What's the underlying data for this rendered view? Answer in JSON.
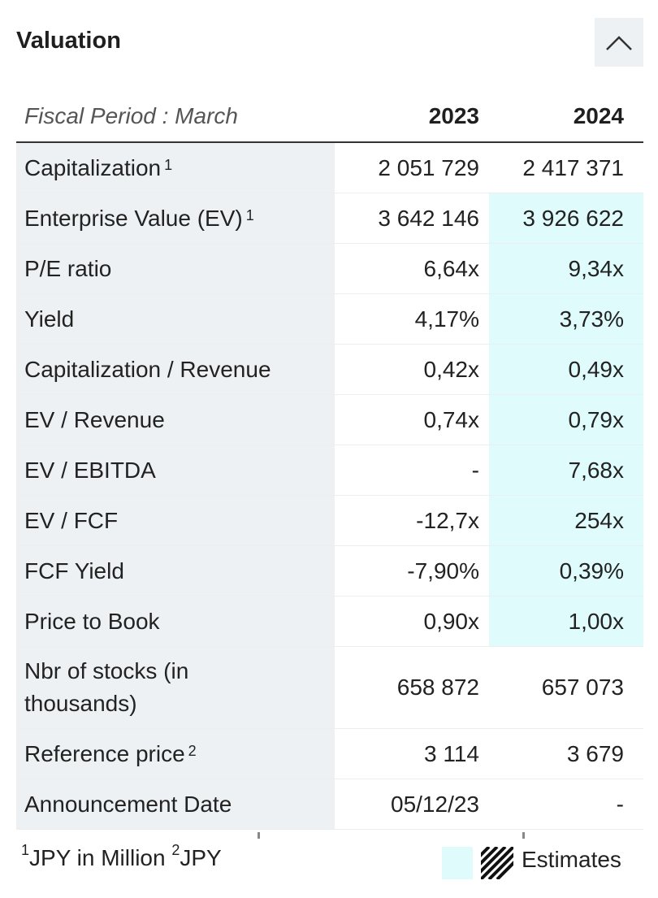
{
  "header": {
    "title": "Valuation",
    "collapse_icon": "chevron-up-icon"
  },
  "table": {
    "period_label": "Fiscal Period : March",
    "years": [
      "2023",
      "2024"
    ],
    "estimate_color": "#dffbfc",
    "rows": [
      {
        "label": "Capitalization",
        "sup": "1",
        "v2023": "2 051 729",
        "v2024": "2 417 371",
        "est2024": false
      },
      {
        "label": "Enterprise Value (EV)",
        "sup": "1",
        "v2023": "3 642 146",
        "v2024": "3 926 622",
        "est2024": true
      },
      {
        "label": "P/E ratio",
        "sup": "",
        "v2023": "6,64x",
        "v2024": "9,34x",
        "est2024": true
      },
      {
        "label": "Yield",
        "sup": "",
        "v2023": "4,17%",
        "v2024": "3,73%",
        "est2024": true
      },
      {
        "label": "Capitalization / Revenue",
        "sup": "",
        "v2023": "0,42x",
        "v2024": "0,49x",
        "est2024": true
      },
      {
        "label": "EV / Revenue",
        "sup": "",
        "v2023": "0,74x",
        "v2024": "0,79x",
        "est2024": true
      },
      {
        "label": "EV / EBITDA",
        "sup": "",
        "v2023": "-",
        "v2024": "7,68x",
        "est2024": true
      },
      {
        "label": "EV / FCF",
        "sup": "",
        "v2023": "-12,7x",
        "v2024": "254x",
        "est2024": true
      },
      {
        "label": "FCF Yield",
        "sup": "",
        "v2023": "-7,90%",
        "v2024": "0,39%",
        "est2024": true
      },
      {
        "label": "Price to Book",
        "sup": "",
        "v2023": "0,90x",
        "v2024": "1,00x",
        "est2024": true
      },
      {
        "label": "Nbr of stocks (in thousands)",
        "sup": "",
        "v2023": "658 872",
        "v2024": "657 073",
        "est2024": false
      },
      {
        "label": "Reference price",
        "sup": "2",
        "v2023": "3 114",
        "v2024": "3 679",
        "est2024": false
      },
      {
        "label": "Announcement Date",
        "sup": "",
        "v2023": "05/12/23",
        "v2024": "-",
        "est2024": false
      }
    ]
  },
  "footer": {
    "note1_sup": "1",
    "note1_text": "JPY in Million ",
    "note2_sup": "2",
    "note2_text": "JPY",
    "legend_label": "Estimates",
    "hatch_icon": "hatch-pattern-icon"
  }
}
